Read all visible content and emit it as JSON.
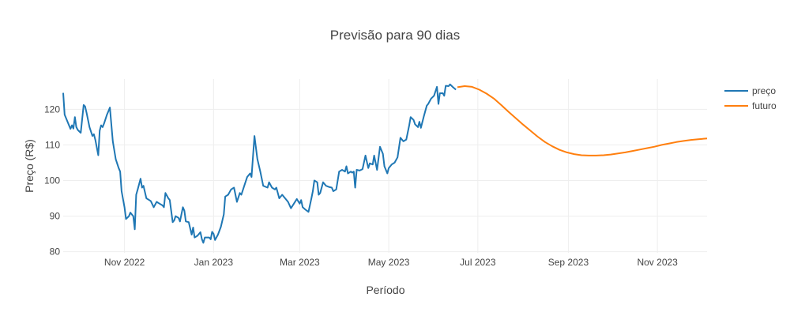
{
  "chart_data": {
    "type": "line",
    "title": "Previsão para 90 dias",
    "xlabel": "Período",
    "ylabel": "Preço (R$)",
    "ylim": [
      79.7,
      128.5
    ],
    "xlim": [
      "2022-09-20",
      "2023-12-05"
    ],
    "grid": true,
    "legend_position": "top-right",
    "y_ticks": [
      80,
      90,
      100,
      110,
      120
    ],
    "x_ticks": [
      {
        "date": "2022-11-01",
        "label": "Nov 2022"
      },
      {
        "date": "2023-01-01",
        "label": "Jan 2023"
      },
      {
        "date": "2023-03-01",
        "label": "Mar 2023"
      },
      {
        "date": "2023-05-01",
        "label": "May 2023"
      },
      {
        "date": "2023-07-01",
        "label": "Jul 2023"
      },
      {
        "date": "2023-09-01",
        "label": "Sep 2023"
      },
      {
        "date": "2023-11-01",
        "label": "Nov 2023"
      }
    ],
    "series": [
      {
        "name": "preço",
        "color": "#1f77b4",
        "points": [
          [
            "2022-09-20",
            124.6
          ],
          [
            "2022-09-21",
            118.5
          ],
          [
            "2022-09-23",
            116.5
          ],
          [
            "2022-09-25",
            114.5
          ],
          [
            "2022-09-26",
            115.5
          ],
          [
            "2022-09-27",
            114.6
          ],
          [
            "2022-09-28",
            117.8
          ],
          [
            "2022-09-29",
            115.0
          ],
          [
            "2022-09-30",
            114.2
          ],
          [
            "2022-10-02",
            113.4
          ],
          [
            "2022-10-04",
            121.2
          ],
          [
            "2022-10-05",
            120.8
          ],
          [
            "2022-10-06",
            119.0
          ],
          [
            "2022-10-08",
            115.0
          ],
          [
            "2022-10-10",
            112.5
          ],
          [
            "2022-10-11",
            113.0
          ],
          [
            "2022-10-12",
            111.4
          ],
          [
            "2022-10-14",
            107.1
          ],
          [
            "2022-10-15",
            114.0
          ],
          [
            "2022-10-16",
            115.5
          ],
          [
            "2022-10-17",
            115.0
          ],
          [
            "2022-10-18",
            116.0
          ],
          [
            "2022-10-20",
            118.5
          ],
          [
            "2022-10-21",
            119.5
          ],
          [
            "2022-10-22",
            120.5
          ],
          [
            "2022-10-24",
            111.0
          ],
          [
            "2022-10-26",
            106.0
          ],
          [
            "2022-10-28",
            103.5
          ],
          [
            "2022-10-29",
            102.5
          ],
          [
            "2022-10-30",
            97.0
          ],
          [
            "2022-11-01",
            92.5
          ],
          [
            "2022-11-02",
            89.2
          ],
          [
            "2022-11-04",
            90.0
          ],
          [
            "2022-11-05",
            91.0
          ],
          [
            "2022-11-07",
            90.0
          ],
          [
            "2022-11-08",
            86.3
          ],
          [
            "2022-11-09",
            96.0
          ],
          [
            "2022-11-10",
            97.5
          ],
          [
            "2022-11-12",
            100.5
          ],
          [
            "2022-11-13",
            98.0
          ],
          [
            "2022-11-14",
            98.5
          ],
          [
            "2022-11-16",
            95.0
          ],
          [
            "2022-11-18",
            94.5
          ],
          [
            "2022-11-19",
            94.2
          ],
          [
            "2022-11-21",
            92.5
          ],
          [
            "2022-11-23",
            94.0
          ],
          [
            "2022-11-25",
            93.5
          ],
          [
            "2022-11-27",
            93.0
          ],
          [
            "2022-11-28",
            92.5
          ],
          [
            "2022-11-29",
            96.5
          ],
          [
            "2022-12-01",
            95.0
          ],
          [
            "2022-12-02",
            94.5
          ],
          [
            "2022-12-04",
            88.3
          ],
          [
            "2022-12-05",
            88.8
          ],
          [
            "2022-12-06",
            90.0
          ],
          [
            "2022-12-08",
            89.5
          ],
          [
            "2022-12-09",
            88.5
          ],
          [
            "2022-12-11",
            92.5
          ],
          [
            "2022-12-12",
            91.5
          ],
          [
            "2022-12-13",
            88.5
          ],
          [
            "2022-12-15",
            88.3
          ],
          [
            "2022-12-17",
            84.8
          ],
          [
            "2022-12-18",
            86.8
          ],
          [
            "2022-12-19",
            84.0
          ],
          [
            "2022-12-21",
            84.5
          ],
          [
            "2022-12-23",
            85.5
          ],
          [
            "2022-12-24",
            83.5
          ],
          [
            "2022-12-25",
            82.5
          ],
          [
            "2022-12-26",
            84.0
          ],
          [
            "2022-12-29",
            84.0
          ],
          [
            "2022-12-30",
            83.5
          ],
          [
            "2022-12-31",
            85.6
          ],
          [
            "2023-01-01",
            85.0
          ],
          [
            "2023-01-02",
            83.3
          ],
          [
            "2023-01-04",
            84.8
          ],
          [
            "2023-01-06",
            87.0
          ],
          [
            "2023-01-08",
            90.5
          ],
          [
            "2023-01-09",
            95.5
          ],
          [
            "2023-01-11",
            96.0
          ],
          [
            "2023-01-13",
            97.5
          ],
          [
            "2023-01-15",
            98.0
          ],
          [
            "2023-01-17",
            94.0
          ],
          [
            "2023-01-19",
            96.5
          ],
          [
            "2023-01-20",
            96.0
          ],
          [
            "2023-01-22",
            98.5
          ],
          [
            "2023-01-24",
            101.0
          ],
          [
            "2023-01-26",
            102.0
          ],
          [
            "2023-01-27",
            101.0
          ],
          [
            "2023-01-29",
            112.5
          ],
          [
            "2023-01-31",
            106.0
          ],
          [
            "2023-02-02",
            102.5
          ],
          [
            "2023-02-04",
            98.5
          ],
          [
            "2023-02-07",
            98.0
          ],
          [
            "2023-02-08",
            99.5
          ],
          [
            "2023-02-10",
            98.0
          ],
          [
            "2023-02-12",
            97.5
          ],
          [
            "2023-02-13",
            98.0
          ],
          [
            "2023-02-15",
            95.0
          ],
          [
            "2023-02-17",
            96.0
          ],
          [
            "2023-02-19",
            95.0
          ],
          [
            "2023-02-21",
            94.0
          ],
          [
            "2023-02-23",
            92.2
          ],
          [
            "2023-02-25",
            93.5
          ],
          [
            "2023-02-27",
            94.8
          ],
          [
            "2023-03-01",
            93.5
          ],
          [
            "2023-03-02",
            94.5
          ],
          [
            "2023-03-03",
            92.5
          ],
          [
            "2023-03-05",
            91.8
          ],
          [
            "2023-03-07",
            91.2
          ],
          [
            "2023-03-09",
            95.0
          ],
          [
            "2023-03-10",
            97.0
          ],
          [
            "2023-03-11",
            100.0
          ],
          [
            "2023-03-13",
            99.5
          ],
          [
            "2023-03-14",
            96.0
          ],
          [
            "2023-03-15",
            96.5
          ],
          [
            "2023-03-17",
            99.5
          ],
          [
            "2023-03-19",
            98.5
          ],
          [
            "2023-03-21",
            98.2
          ],
          [
            "2023-03-23",
            98.0
          ],
          [
            "2023-03-24",
            97.0
          ],
          [
            "2023-03-26",
            97.5
          ],
          [
            "2023-03-28",
            102.5
          ],
          [
            "2023-03-30",
            103.0
          ],
          [
            "2023-04-01",
            102.5
          ],
          [
            "2023-04-02",
            104.0
          ],
          [
            "2023-04-03",
            102.0
          ],
          [
            "2023-04-05",
            102.5
          ],
          [
            "2023-04-06",
            102.2
          ],
          [
            "2023-04-07",
            102.5
          ],
          [
            "2023-04-08",
            98.0
          ],
          [
            "2023-04-09",
            103.0
          ],
          [
            "2023-04-11",
            102.8
          ],
          [
            "2023-04-13",
            103.2
          ],
          [
            "2023-04-15",
            107.0
          ],
          [
            "2023-04-17",
            103.5
          ],
          [
            "2023-04-18",
            104.8
          ],
          [
            "2023-04-20",
            104.5
          ],
          [
            "2023-04-21",
            107.0
          ],
          [
            "2023-04-23",
            103.0
          ],
          [
            "2023-04-25",
            109.5
          ],
          [
            "2023-04-27",
            107.5
          ],
          [
            "2023-04-28",
            104.0
          ],
          [
            "2023-04-30",
            102.0
          ],
          [
            "2023-05-01",
            103.5
          ],
          [
            "2023-05-03",
            104.5
          ],
          [
            "2023-05-05",
            105.0
          ],
          [
            "2023-05-07",
            106.5
          ],
          [
            "2023-05-09",
            112.0
          ],
          [
            "2023-05-11",
            111.0
          ],
          [
            "2023-05-13",
            111.5
          ],
          [
            "2023-05-15",
            115.5
          ],
          [
            "2023-05-16",
            117.8
          ],
          [
            "2023-05-18",
            117.0
          ],
          [
            "2023-05-19",
            115.8
          ],
          [
            "2023-05-21",
            115.0
          ],
          [
            "2023-05-22",
            116.5
          ],
          [
            "2023-05-23",
            114.8
          ],
          [
            "2023-05-25",
            118.0
          ],
          [
            "2023-05-27",
            121.0
          ],
          [
            "2023-05-28",
            121.5
          ],
          [
            "2023-05-30",
            123.0
          ],
          [
            "2023-06-01",
            123.8
          ],
          [
            "2023-06-03",
            126.3
          ],
          [
            "2023-06-04",
            121.5
          ],
          [
            "2023-06-05",
            124.5
          ],
          [
            "2023-06-07",
            124.5
          ],
          [
            "2023-06-08",
            123.8
          ],
          [
            "2023-06-09",
            126.6
          ],
          [
            "2023-06-11",
            126.5
          ],
          [
            "2023-06-12",
            127.0
          ],
          [
            "2023-06-14",
            126.2
          ],
          [
            "2023-06-16",
            125.5
          ]
        ]
      },
      {
        "name": "futuro",
        "color": "#ff7f0e",
        "points": [
          [
            "2023-06-17",
            126.2
          ],
          [
            "2023-06-22",
            126.5
          ],
          [
            "2023-06-27",
            126.3
          ],
          [
            "2023-07-02",
            125.5
          ],
          [
            "2023-07-07",
            124.4
          ],
          [
            "2023-07-12",
            123.0
          ],
          [
            "2023-07-17",
            121.2
          ],
          [
            "2023-07-22",
            119.3
          ],
          [
            "2023-07-27",
            117.5
          ],
          [
            "2023-08-01",
            115.7
          ],
          [
            "2023-08-06",
            114.0
          ],
          [
            "2023-08-11",
            112.3
          ],
          [
            "2023-08-16",
            110.8
          ],
          [
            "2023-08-21",
            109.6
          ],
          [
            "2023-08-26",
            108.6
          ],
          [
            "2023-08-31",
            107.9
          ],
          [
            "2023-09-05",
            107.4
          ],
          [
            "2023-09-10",
            107.1
          ],
          [
            "2023-09-15",
            107.0
          ],
          [
            "2023-09-20",
            107.0
          ],
          [
            "2023-09-25",
            107.1
          ],
          [
            "2023-09-30",
            107.3
          ],
          [
            "2023-10-05",
            107.6
          ],
          [
            "2023-10-10",
            107.9
          ],
          [
            "2023-10-15",
            108.3
          ],
          [
            "2023-10-20",
            108.7
          ],
          [
            "2023-10-25",
            109.1
          ],
          [
            "2023-10-30",
            109.5
          ],
          [
            "2023-11-04",
            110.0
          ],
          [
            "2023-11-09",
            110.4
          ],
          [
            "2023-11-14",
            110.8
          ],
          [
            "2023-11-19",
            111.1
          ],
          [
            "2023-11-24",
            111.4
          ],
          [
            "2023-11-29",
            111.6
          ],
          [
            "2023-12-05",
            111.8
          ]
        ]
      }
    ]
  }
}
